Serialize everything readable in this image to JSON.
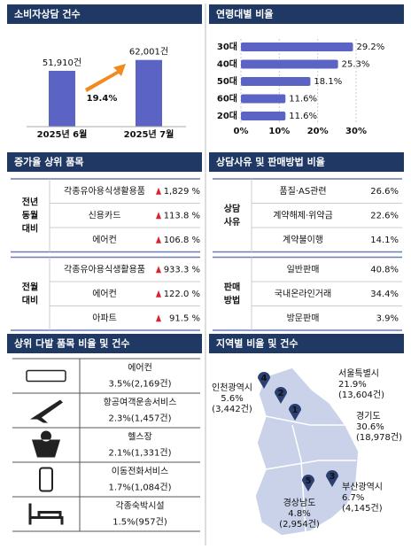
{
  "chart_data": [
    {
      "type": "bar",
      "title": "소비자상담 건수",
      "categories": [
        "2025년 6월",
        "2025년 7월"
      ],
      "values": [
        51910,
        62001
      ],
      "value_labels": [
        "51,910건",
        "62,001건"
      ],
      "annotation": "19.4%",
      "color": "#5b63c4",
      "ylim": [
        0,
        70000
      ]
    },
    {
      "type": "hbar",
      "title": "연령대별 비율",
      "categories": [
        "30대",
        "40대",
        "50대",
        "60대",
        "20대"
      ],
      "values": [
        29.2,
        25.3,
        18.1,
        11.6,
        11.6
      ],
      "value_labels": [
        "29.2%",
        "25.3%",
        "18.1%",
        "11.6%",
        "11.6%"
      ],
      "color": "#5b63c4",
      "xlim": [
        0,
        30
      ],
      "xticks": [
        {
          "value": 0,
          "label": "0%"
        },
        {
          "value": 10,
          "label": "10%"
        },
        {
          "value": 20,
          "label": "20%"
        },
        {
          "value": 30,
          "label": "30%"
        }
      ],
      "grid": true
    }
  ],
  "increase_top": {
    "title": "증가율 상위 품목",
    "groups": [
      {
        "label": [
          "전년",
          "동월",
          "대비"
        ],
        "rows": [
          [
            "각종유아용식생활용품",
            "1,829 %"
          ],
          [
            "신용카드",
            "113.8 %"
          ],
          [
            "에어컨",
            "106.8 %"
          ]
        ]
      },
      {
        "label": [
          "전월",
          "대비"
        ],
        "rows": [
          [
            "각종유아용식생활용품",
            "933.3 %"
          ],
          [
            "에어컨",
            "122.0 %"
          ],
          [
            "아파트",
            "91.5 %"
          ]
        ]
      }
    ]
  },
  "reason_method": {
    "title": "상담사유 및 판매방법 비율",
    "groups": [
      {
        "label": [
          "상담",
          "사유"
        ],
        "rows": [
          [
            "품질·AS관련",
            "26.6%"
          ],
          [
            "계약해제·위약금",
            "22.6%"
          ],
          [
            "계약불이행",
            "14.1%"
          ]
        ]
      },
      {
        "label": [
          "판매",
          "방법"
        ],
        "rows": [
          [
            "일반판매",
            "40.8%"
          ],
          [
            "국내온라인거래",
            "34.4%"
          ],
          [
            "방문판매",
            "3.9%"
          ]
        ]
      }
    ]
  },
  "top_items": {
    "title": "상위 다발 품목 비율 및 건수",
    "items": [
      {
        "name": "에어컨",
        "detail": "3.5%(2,169건)"
      },
      {
        "name": "항공여객운송서비스",
        "detail": "2.3%(1,457건)"
      },
      {
        "name": "헬스장",
        "detail": "2.1%(1,331건)"
      },
      {
        "name": "이동전화서비스",
        "detail": "1.7%(1,084건)"
      },
      {
        "name": "각종숙박시설",
        "detail": "1.5%(957건)"
      }
    ]
  },
  "regions": {
    "title": "지역별 비율 및 건수",
    "items": [
      {
        "rank": "1",
        "name": "경기도",
        "share": "30.6%",
        "count": "(18,978건)"
      },
      {
        "rank": "2",
        "name": "서울특별시",
        "share": "21.9%",
        "count": "(13,604건)"
      },
      {
        "rank": "3",
        "name": "부산광역시",
        "share": "6.7%",
        "count": "(4,145건)"
      },
      {
        "rank": "4",
        "name": "인천광역시",
        "share": "5.6%",
        "count": "(3,442건)"
      },
      {
        "rank": "5",
        "name": "경상남도",
        "share": "4.8%",
        "count": "(2,954건)"
      }
    ]
  }
}
